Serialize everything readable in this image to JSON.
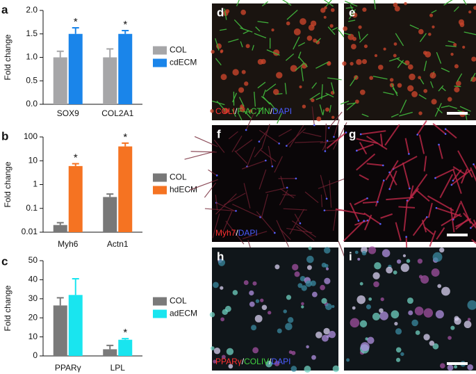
{
  "chart_data": [
    {
      "type": "bar",
      "panel": "a",
      "ylabel": "Fold change",
      "categories": [
        "SOX9",
        "COL2A1"
      ],
      "ylim": [
        0,
        2
      ],
      "yticks": [
        {
          "value": 0,
          "label": "0.0"
        },
        {
          "value": 0.5,
          "label": "0.5"
        },
        {
          "value": 1,
          "label": "1.0"
        },
        {
          "value": 1.5,
          "label": "1.5"
        },
        {
          "value": 2,
          "label": "2.0"
        }
      ],
      "series": [
        {
          "name": "COL",
          "color": "#a6a6a8",
          "values": [
            1.0,
            1.0
          ],
          "errors": [
            0.13,
            0.18
          ],
          "markers": [
            null,
            null
          ]
        },
        {
          "name": "cdECM",
          "color": "#1a85ea",
          "values": [
            1.5,
            1.5
          ],
          "errors": [
            0.13,
            0.07
          ],
          "markers": [
            "*",
            "*"
          ]
        }
      ]
    },
    {
      "type": "bar",
      "panel": "b",
      "ylabel": "Fold change",
      "categories": [
        "Myh6",
        "Actn1"
      ],
      "log_scale": true,
      "ylim": [
        0.01,
        100
      ],
      "yticks": [
        0.01,
        0.1,
        1,
        10,
        100
      ],
      "series": [
        {
          "name": "COL",
          "color": "#787878",
          "values": [
            0.02,
            0.3
          ],
          "errors": [
            0.005,
            0.1
          ],
          "markers": [
            null,
            null
          ]
        },
        {
          "name": "hdECM",
          "color": "#f57322",
          "values": [
            6,
            40
          ],
          "errors": [
            1.5,
            15
          ],
          "markers": [
            "*",
            "*"
          ]
        }
      ]
    },
    {
      "type": "bar",
      "panel": "c",
      "ylabel": "Fold change",
      "categories": [
        "PPARγ",
        "LPL"
      ],
      "ylim": [
        0,
        50
      ],
      "yticks": [
        0,
        10,
        20,
        30,
        40,
        50
      ],
      "series": [
        {
          "name": "COL",
          "color": "#7a7a7a",
          "values": [
            26.5,
            3.5
          ],
          "errors": [
            4,
            2
          ],
          "markers": [
            null,
            null
          ]
        },
        {
          "name": "adECM",
          "color": "#19e5ef",
          "values": [
            32,
            8.5
          ],
          "errors": [
            8.5,
            0.6
          ],
          "markers": [
            null,
            "*"
          ]
        }
      ]
    }
  ],
  "images": [
    {
      "panel": "d",
      "caption": [
        {
          "text": "COLI",
          "color": "#ff3030"
        },
        {
          "text": "/",
          "color": "#ffffff"
        },
        {
          "text": "F-ACTIN",
          "color": "#40d040"
        },
        {
          "text": "/",
          "color": "#ffffff"
        },
        {
          "text": "DAPI",
          "color": "#4a5cff"
        }
      ]
    },
    {
      "panel": "e",
      "caption": []
    },
    {
      "panel": "f",
      "caption": [
        {
          "text": "Myh7",
          "color": "#ff3030"
        },
        {
          "text": "/",
          "color": "#ffffff"
        },
        {
          "text": "DAPI",
          "color": "#4a5cff"
        }
      ]
    },
    {
      "panel": "g",
      "caption": []
    },
    {
      "panel": "h",
      "caption": [
        {
          "text": "PPARγ",
          "color": "#ff3030"
        },
        {
          "text": "/",
          "color": "#ffffff"
        },
        {
          "text": "COLIV",
          "color": "#40d040"
        },
        {
          "text": "/",
          "color": "#ffffff"
        },
        {
          "text": "DAPI",
          "color": "#4a5cff"
        }
      ]
    },
    {
      "panel": "i",
      "caption": []
    }
  ]
}
